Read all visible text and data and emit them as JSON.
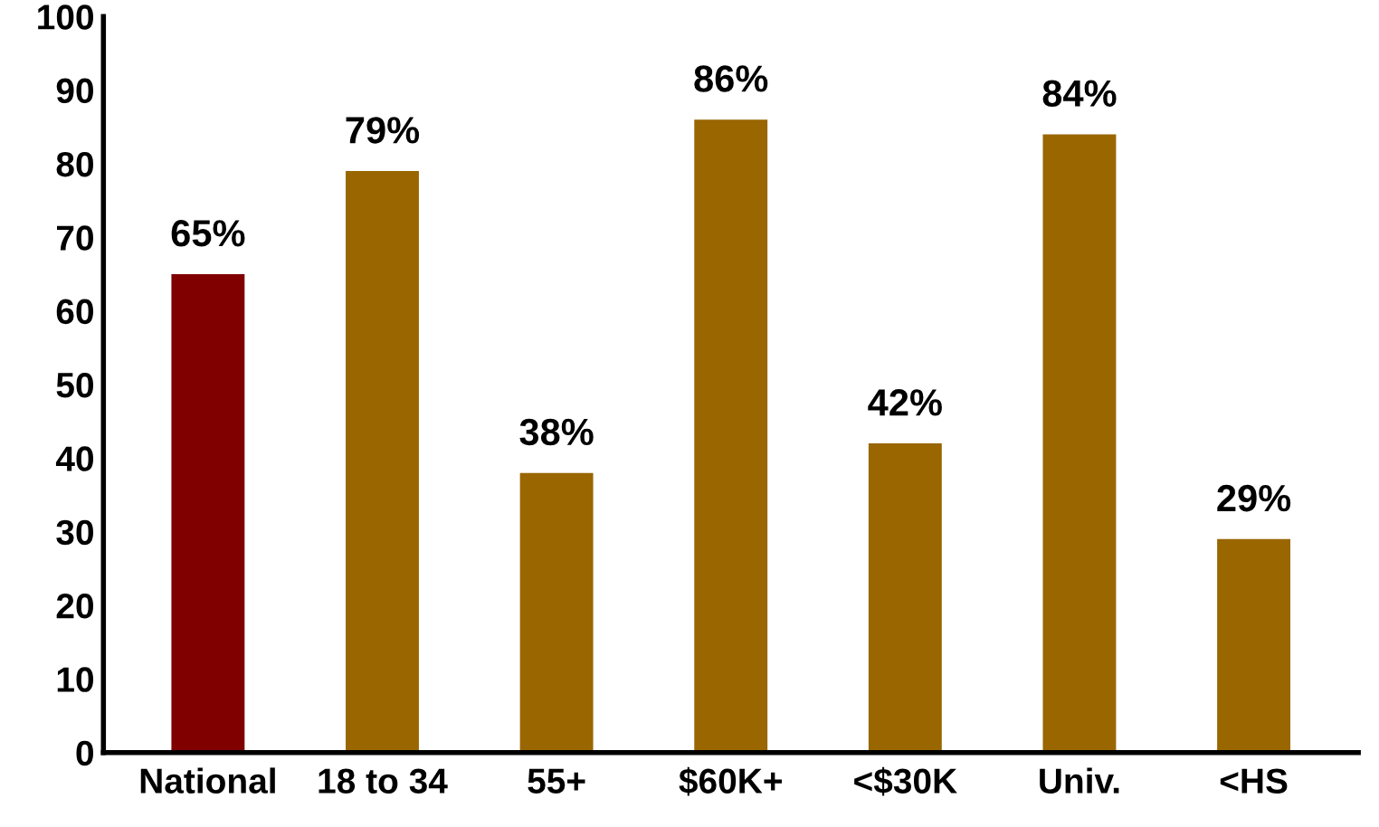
{
  "chart_data": {
    "type": "bar",
    "categories": [
      "National",
      "18 to 34",
      "55+",
      "$60K+",
      "<$30K",
      "Univ.",
      "<HS"
    ],
    "values": [
      65,
      79,
      38,
      86,
      42,
      84,
      29
    ],
    "colors": [
      "#800000",
      "#996600",
      "#996600",
      "#996600",
      "#996600",
      "#996600",
      "#996600"
    ],
    "value_labels": [
      "65%",
      "79%",
      "38%",
      "86%",
      "42%",
      "84%",
      "29%"
    ],
    "ylim": [
      0,
      100
    ],
    "yticks": [
      0,
      10,
      20,
      30,
      40,
      50,
      60,
      70,
      80,
      90,
      100
    ],
    "grid": false,
    "legend": false
  }
}
